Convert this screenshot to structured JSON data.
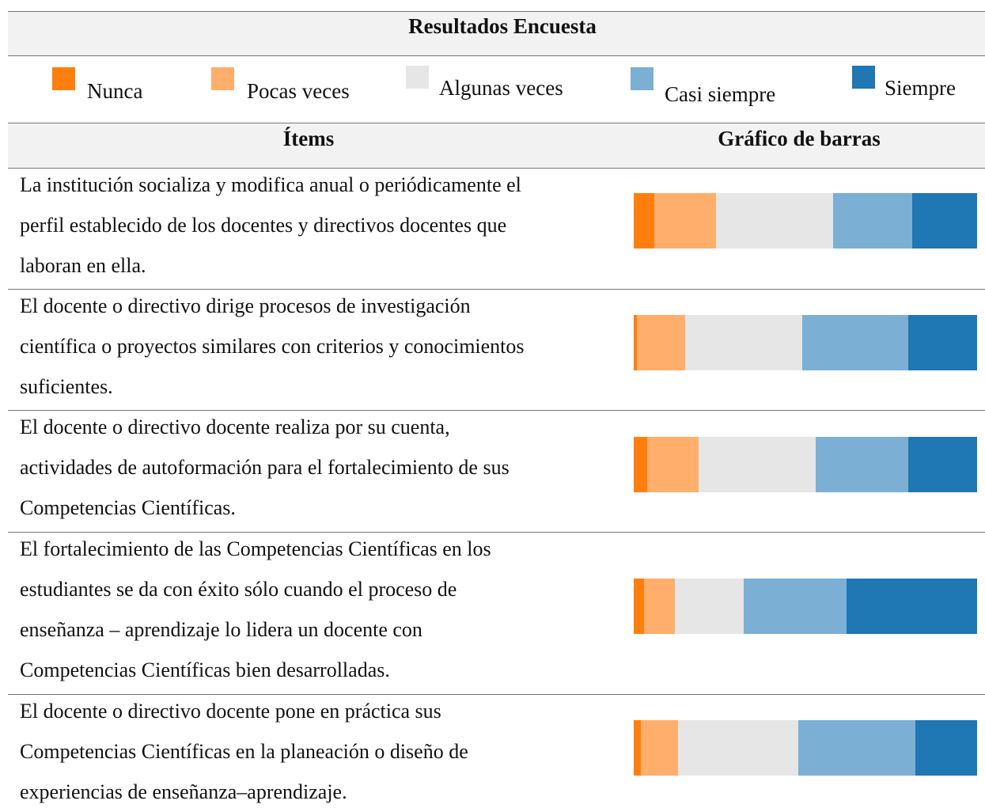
{
  "title": "Resultados Encuesta",
  "legend": [
    {
      "name": "Nunca",
      "color": "#ff7f0e"
    },
    {
      "name": "Pocas veces",
      "color": "#ffae6b"
    },
    {
      "name": "Algunas veces",
      "color": "#e6e6e6"
    },
    {
      "name": "Casi siempre",
      "color": "#7bafd4"
    },
    {
      "name": "Siempre",
      "color": "#1f77b4"
    }
  ],
  "headers": [
    "Ítems",
    "Gráfico de barras"
  ],
  "rows": [
    {
      "lines": [
        "La institución socializa y modifica anual o periódicamente el",
        "perfil establecido de los docentes y directivos docentes que",
        "laboran en ella."
      ],
      "values": [
        6,
        18,
        34,
        23,
        19
      ]
    },
    {
      "lines": [
        "El docente o directivo dirige procesos de investigación",
        "científica o proyectos similares con criterios y conocimientos",
        "suficientes."
      ],
      "values": [
        1,
        14,
        34,
        31,
        20
      ]
    },
    {
      "lines": [
        "El docente o directivo docente realiza por su cuenta,",
        "actividades de autoformación para el fortalecimiento de sus",
        "Competencias Científicas."
      ],
      "values": [
        4,
        15,
        34,
        27,
        20
      ]
    },
    {
      "lines": [
        "El fortalecimiento de las Competencias Científicas en los",
        "estudiantes se da con éxito sólo cuando el proceso de",
        "enseñanza – aprendizaje lo lidera un docente con",
        "Competencias Científicas bien desarrolladas."
      ],
      "values": [
        3,
        9,
        20,
        30,
        38
      ]
    },
    {
      "lines": [
        "El docente o directivo docente pone en práctica sus",
        "Competencias Científicas en la planeación o diseño de",
        "experiencias de enseñanza–aprendizaje."
      ],
      "values": [
        2,
        11,
        35,
        34,
        18
      ]
    }
  ]
}
